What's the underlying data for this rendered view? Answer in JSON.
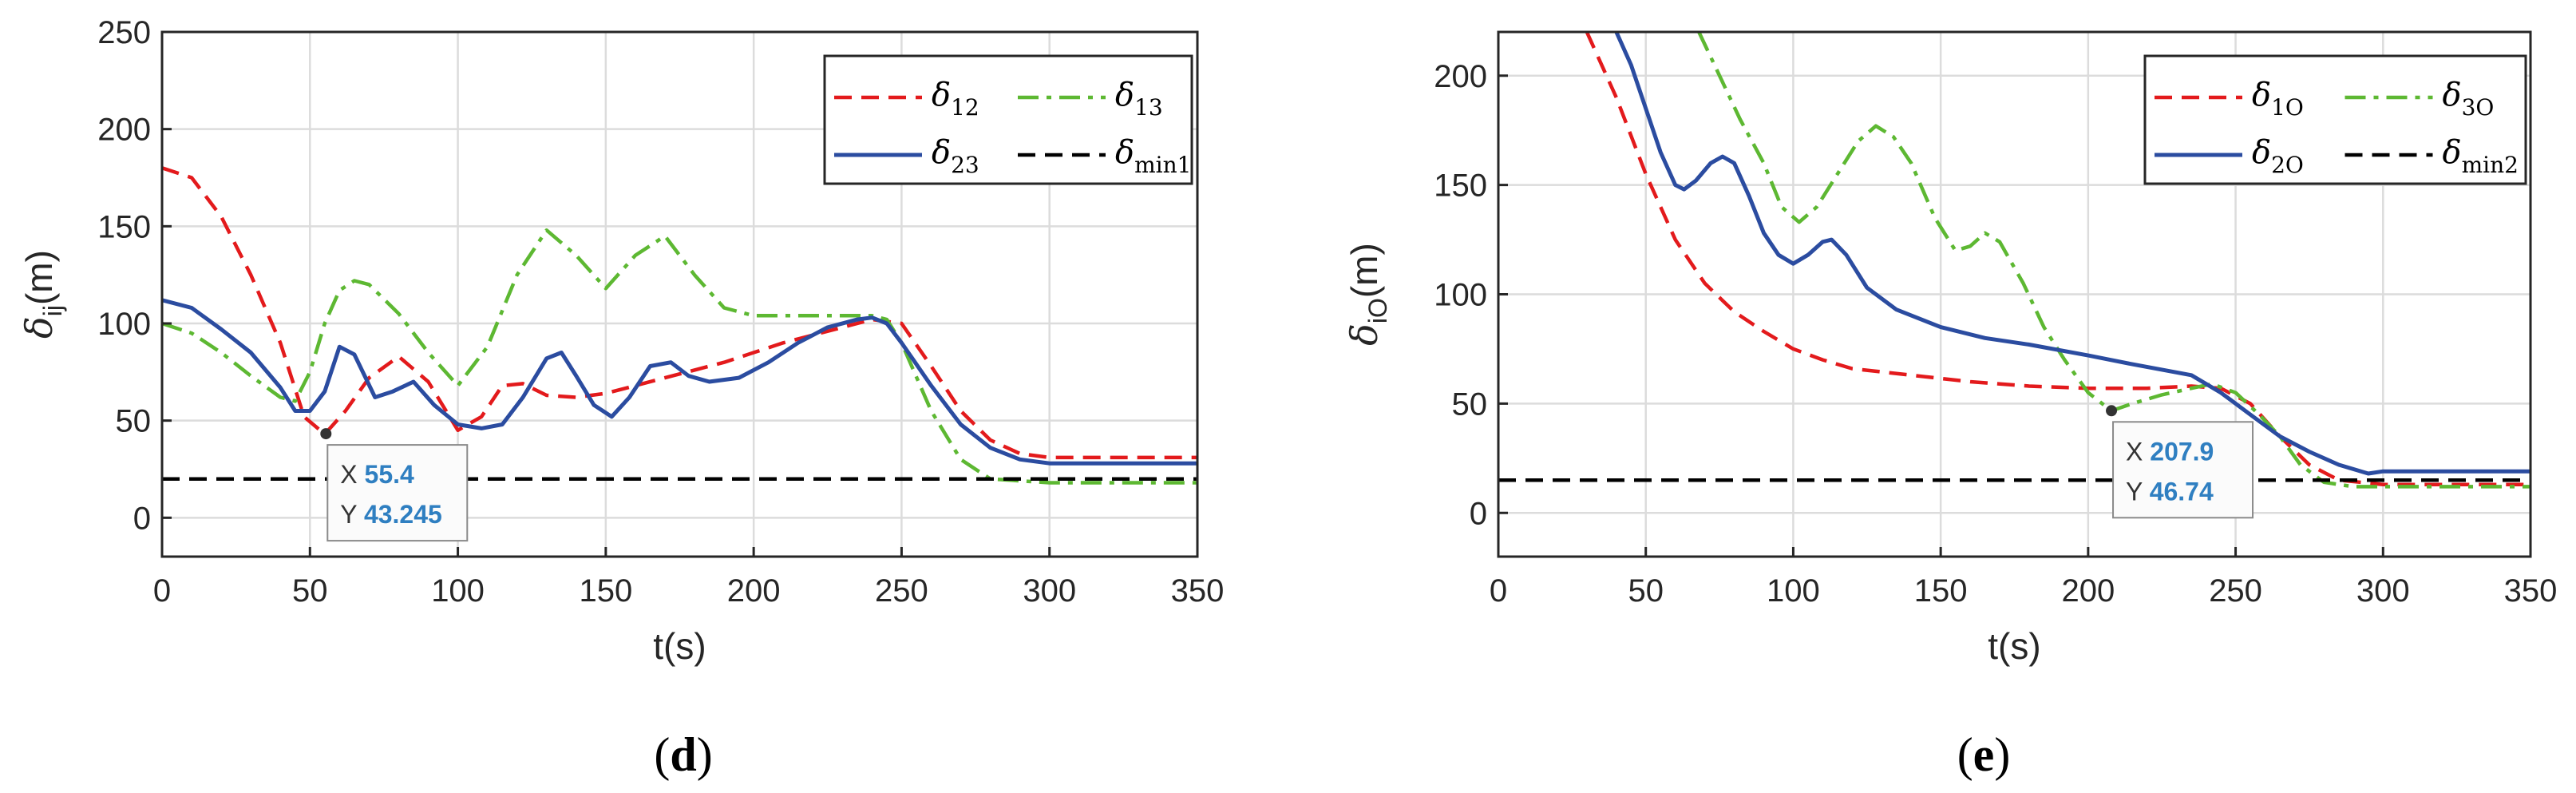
{
  "chart_data": [
    {
      "type": "line",
      "panel_label": "(d)",
      "xlabel": "t(s)",
      "ylabel": "δij(m)",
      "ylabel_symbol": "δ",
      "ylabel_sub": "ij",
      "ylabel_unit": "(m)",
      "xlim": [
        0,
        350
      ],
      "ylim": [
        -20,
        250
      ],
      "xticks": [
        0,
        50,
        100,
        150,
        200,
        250,
        300,
        350
      ],
      "yticks": [
        0,
        50,
        100,
        150,
        200,
        250
      ],
      "grid": true,
      "legend_position": "top-right",
      "series": [
        {
          "name": "δ12",
          "symbol": "δ",
          "sub": "12",
          "color": "#e31a1c",
          "dash": "dashed",
          "x": [
            0,
            10,
            20,
            30,
            40,
            48,
            55,
            62,
            70,
            80,
            90,
            100,
            108,
            115,
            122,
            130,
            140,
            150,
            160,
            170,
            180,
            190,
            200,
            210,
            220,
            230,
            240,
            250,
            260,
            270,
            280,
            290,
            300,
            350
          ],
          "y": [
            180,
            175,
            155,
            125,
            90,
            52,
            43,
            55,
            72,
            83,
            70,
            45,
            52,
            68,
            69,
            63,
            62,
            64,
            68,
            72,
            76,
            80,
            85,
            90,
            94,
            98,
            102,
            100,
            78,
            55,
            40,
            33,
            31,
            31
          ]
        },
        {
          "name": "δ13",
          "symbol": "δ",
          "sub": "13",
          "color": "#5db832",
          "dash": "dashdot",
          "x": [
            0,
            10,
            20,
            30,
            40,
            45,
            50,
            55,
            60,
            65,
            70,
            80,
            90,
            100,
            110,
            120,
            130,
            140,
            150,
            160,
            170,
            180,
            190,
            200,
            210,
            220,
            230,
            240,
            245,
            250,
            260,
            270,
            280,
            290,
            300,
            350
          ],
          "y": [
            100,
            95,
            85,
            73,
            62,
            60,
            75,
            100,
            117,
            122,
            120,
            105,
            85,
            68,
            88,
            125,
            148,
            135,
            118,
            135,
            145,
            125,
            108,
            104,
            104,
            104,
            104,
            104,
            102,
            90,
            55,
            30,
            20,
            19,
            18,
            18
          ]
        },
        {
          "name": "δ23",
          "symbol": "δ",
          "sub": "23",
          "color": "#2b4ca0",
          "dash": "solid",
          "x": [
            0,
            10,
            20,
            30,
            40,
            45,
            50,
            55,
            60,
            65,
            72,
            78,
            85,
            92,
            100,
            108,
            115,
            122,
            130,
            135,
            140,
            146,
            152,
            158,
            165,
            172,
            178,
            185,
            195,
            205,
            215,
            225,
            235,
            240,
            245,
            250,
            260,
            270,
            280,
            290,
            300,
            350
          ],
          "y": [
            112,
            108,
            97,
            85,
            67,
            55,
            55,
            65,
            88,
            84,
            62,
            65,
            70,
            58,
            48,
            46,
            48,
            62,
            82,
            85,
            73,
            58,
            52,
            62,
            78,
            80,
            73,
            70,
            72,
            80,
            90,
            98,
            102,
            103,
            100,
            90,
            68,
            48,
            36,
            30,
            28,
            28
          ]
        },
        {
          "name": "δmin1",
          "symbol": "δ",
          "sub": "min1",
          "color": "#000000",
          "dash": "dashed",
          "x": [
            0,
            350
          ],
          "y": [
            20,
            20
          ]
        }
      ],
      "datatip": {
        "x_label": "X",
        "x_value": "55.4",
        "y_label": "Y",
        "y_value": "43.245",
        "x": 55.4,
        "y": 43.245
      }
    },
    {
      "type": "line",
      "panel_label": "(e)",
      "xlabel": "t(s)",
      "ylabel": "δiO(m)",
      "ylabel_symbol": "δ",
      "ylabel_sub": "iO",
      "ylabel_unit": "(m)",
      "xlim": [
        0,
        350
      ],
      "ylim": [
        -20,
        220
      ],
      "xticks": [
        0,
        50,
        100,
        150,
        200,
        250,
        300,
        350
      ],
      "yticks": [
        0,
        50,
        100,
        150,
        200
      ],
      "grid": true,
      "legend_position": "top-right",
      "series": [
        {
          "name": "δ1O",
          "symbol": "δ",
          "sub": "1O",
          "color": "#e31a1c",
          "dash": "dashed",
          "x": [
            30,
            40,
            50,
            60,
            70,
            80,
            90,
            100,
            110,
            120,
            140,
            160,
            180,
            200,
            220,
            235,
            245,
            255,
            265,
            275,
            285,
            300,
            350
          ],
          "y": [
            220,
            190,
            155,
            125,
            105,
            92,
            83,
            75,
            70,
            66,
            63,
            60,
            58,
            57,
            57,
            58,
            57,
            50,
            35,
            22,
            15,
            13,
            13
          ]
        },
        {
          "name": "δ3O",
          "symbol": "δ",
          "sub": "3O",
          "color": "#5db832",
          "dash": "dashdot",
          "x": [
            68,
            75,
            82,
            90,
            96,
            102,
            108,
            115,
            122,
            128,
            134,
            140,
            148,
            155,
            160,
            165,
            170,
            178,
            185,
            192,
            200,
            207.9,
            215,
            225,
            235,
            242,
            250,
            258,
            265,
            272,
            280,
            290,
            300,
            350
          ],
          "y": [
            220,
            200,
            180,
            160,
            140,
            133,
            140,
            155,
            170,
            177,
            172,
            160,
            135,
            120,
            122,
            128,
            124,
            105,
            85,
            70,
            55,
            46.7,
            50,
            54,
            57,
            59,
            55,
            45,
            35,
            22,
            14,
            12,
            12,
            12
          ]
        },
        {
          "name": "δ2O",
          "symbol": "δ",
          "sub": "2O",
          "color": "#2b4ca0",
          "dash": "solid",
          "x": [
            40,
            45,
            50,
            55,
            60,
            63,
            67,
            72,
            76,
            80,
            85,
            90,
            95,
            100,
            105,
            110,
            113,
            118,
            125,
            135,
            150,
            165,
            180,
            200,
            215,
            235,
            245,
            255,
            265,
            275,
            285,
            295,
            300,
            350
          ],
          "y": [
            220,
            205,
            185,
            165,
            150,
            148,
            152,
            160,
            163,
            160,
            145,
            128,
            118,
            114,
            118,
            124,
            125,
            118,
            103,
            93,
            85,
            80,
            77,
            72,
            68,
            63,
            55,
            45,
            35,
            28,
            22,
            18,
            19,
            19
          ]
        },
        {
          "name": "δmin2",
          "symbol": "δ",
          "sub": "min2",
          "color": "#000000",
          "dash": "dashed",
          "x": [
            0,
            350
          ],
          "y": [
            15,
            15
          ]
        }
      ],
      "datatip": {
        "x_label": "X",
        "x_value": "207.9",
        "y_label": "Y",
        "y_value": "46.74",
        "x": 207.9,
        "y": 46.74
      }
    }
  ],
  "captions": {
    "d": {
      "open": "(",
      "letter": "d",
      "close": ")"
    },
    "e": {
      "open": "(",
      "letter": "e",
      "close": ")"
    }
  }
}
